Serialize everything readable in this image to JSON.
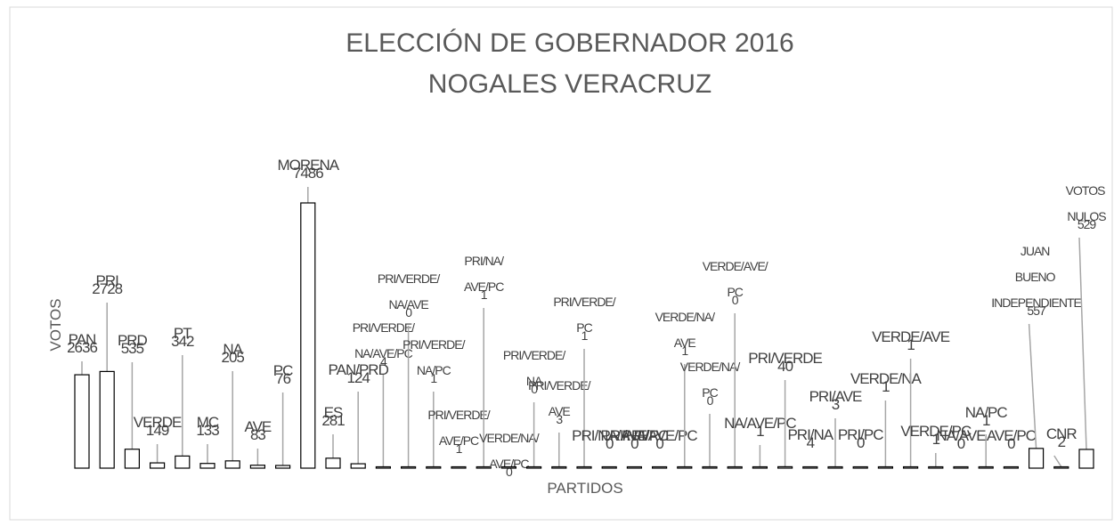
{
  "chart_data": {
    "type": "bar",
    "title": [
      "ELECCIÓN DE GOBERNADOR 2016",
      "NOGALES VERACRUZ"
    ],
    "x_label": "PARTIDOS",
    "y_label": "VOTOS",
    "categories": [
      "PAN",
      "PRI",
      "PRD",
      "VERDE",
      "PT",
      "MC",
      "NA",
      "AVE",
      "PC",
      "MORENA",
      "ES",
      "PAN/PRD",
      "PRI/VERDE/NA/AVE/PC",
      "PRI/VERDE/NA/AVE",
      "PRI/VERDE/NA/PC",
      "PRI/VERDE/AVE/PC",
      "PRI/NA/AVE/PC",
      "VERDE/NA/AVE/PC",
      "PRI/VERDE/NA",
      "PRI/VERDE/AVE",
      "PRI/VERDE/PC",
      "PRI/NA/AVE",
      "PRI/NA/PC",
      "PRI/AVE/PC",
      "VERDE/NA/AVE",
      "VERDE/NA/PC",
      "VERDE/AVE/PC",
      "NA/AVE/PC",
      "PRI/VERDE",
      "PRI/NA",
      "PRI/AVE",
      "PRI/PC",
      "VERDE/NA",
      "VERDE/AVE",
      "VERDE/PC",
      "NA/AVE",
      "NA/PC",
      "AVE/PC",
      "JUAN BUENO INDEPENDIENTE",
      "CNR",
      "VOTOS NULOS"
    ],
    "values": [
      2636,
      2728,
      535,
      149,
      342,
      133,
      205,
      83,
      76,
      7486,
      281,
      124,
      4,
      0,
      1,
      1,
      1,
      0,
      0,
      3,
      1,
      0,
      0,
      0,
      1,
      0,
      0,
      1,
      40,
      4,
      3,
      0,
      1,
      1,
      1,
      0,
      1,
      0,
      557,
      2,
      529
    ],
    "color": "#ffffff",
    "ylim": [
      0,
      7500
    ]
  }
}
